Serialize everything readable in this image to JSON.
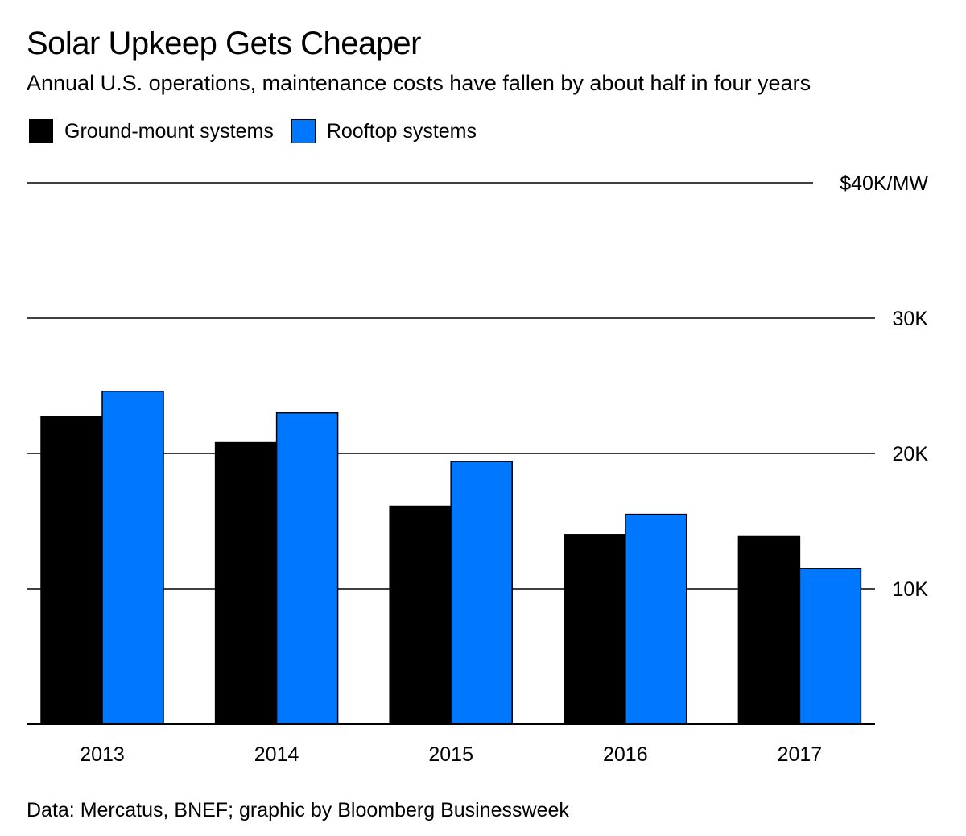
{
  "title": "Solar Upkeep Gets Cheaper",
  "subtitle": "Annual U.S. operations, maintenance costs have fallen by about half in four years",
  "source": "Data: Mercatus, BNEF; graphic by Bloomberg Businessweek",
  "chart_data": {
    "type": "bar",
    "categories": [
      "2013",
      "2014",
      "2015",
      "2016",
      "2017"
    ],
    "series": [
      {
        "name": "Ground-mount systems",
        "color": "#000000",
        "values": [
          22.7,
          20.8,
          16.1,
          14.0,
          13.9
        ]
      },
      {
        "name": "Rooftop systems",
        "color": "#0077ff",
        "values": [
          24.6,
          23.0,
          19.4,
          15.5,
          11.5
        ]
      }
    ],
    "ylim": [
      0,
      40
    ],
    "yticks": [
      10,
      20,
      30,
      40
    ],
    "ytick_labels": [
      "10K",
      "20K",
      "30K",
      "$40K/MW"
    ],
    "unit": "$K/MW",
    "grid": true,
    "legend": "top-left"
  }
}
